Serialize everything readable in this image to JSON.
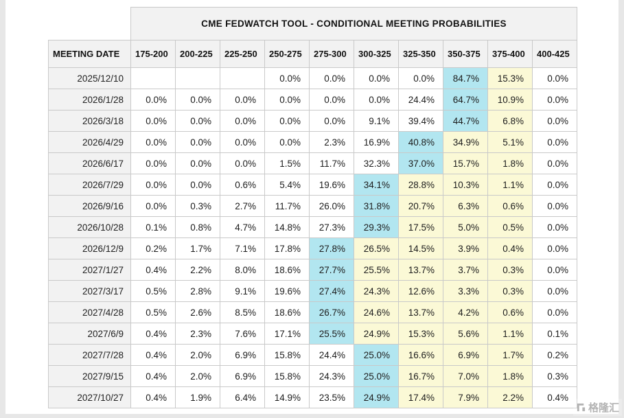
{
  "page": {
    "watermark_text": "格隆汇"
  },
  "chart_data": {
    "type": "table",
    "title": "CME FEDWATCH TOOL - CONDITIONAL MEETING PROBABILITIES",
    "row_header": "MEETING DATE",
    "columns": [
      "175-200",
      "200-225",
      "225-250",
      "250-275",
      "275-300",
      "300-325",
      "325-350",
      "350-375",
      "375-400",
      "400-425"
    ],
    "highlight_colors": {
      "max": "#b2e6f0",
      "band": "#fbf9d6"
    },
    "rows": [
      {
        "date": "2025/12/10",
        "values": [
          "",
          "",
          "",
          "0.0%",
          "0.0%",
          "0.0%",
          "0.0%",
          "84.7%",
          "15.3%",
          "0.0%"
        ],
        "max_col": 7,
        "band_cols": [
          8
        ]
      },
      {
        "date": "2026/1/28",
        "values": [
          "0.0%",
          "0.0%",
          "0.0%",
          "0.0%",
          "0.0%",
          "0.0%",
          "24.4%",
          "64.7%",
          "10.9%",
          "0.0%"
        ],
        "max_col": 7,
        "band_cols": [
          8
        ]
      },
      {
        "date": "2026/3/18",
        "values": [
          "0.0%",
          "0.0%",
          "0.0%",
          "0.0%",
          "0.0%",
          "9.1%",
          "39.4%",
          "44.7%",
          "6.8%",
          "0.0%"
        ],
        "max_col": 7,
        "band_cols": [
          8
        ]
      },
      {
        "date": "2026/4/29",
        "values": [
          "0.0%",
          "0.0%",
          "0.0%",
          "0.0%",
          "2.3%",
          "16.9%",
          "40.8%",
          "34.9%",
          "5.1%",
          "0.0%"
        ],
        "max_col": 6,
        "band_cols": [
          7,
          8
        ]
      },
      {
        "date": "2026/6/17",
        "values": [
          "0.0%",
          "0.0%",
          "0.0%",
          "1.5%",
          "11.7%",
          "32.3%",
          "37.0%",
          "15.7%",
          "1.8%",
          "0.0%"
        ],
        "max_col": 6,
        "band_cols": [
          7,
          8
        ]
      },
      {
        "date": "2026/7/29",
        "values": [
          "0.0%",
          "0.0%",
          "0.6%",
          "5.4%",
          "19.6%",
          "34.1%",
          "28.8%",
          "10.3%",
          "1.1%",
          "0.0%"
        ],
        "max_col": 5,
        "band_cols": [
          6,
          7,
          8
        ]
      },
      {
        "date": "2026/9/16",
        "values": [
          "0.0%",
          "0.3%",
          "2.7%",
          "11.7%",
          "26.0%",
          "31.8%",
          "20.7%",
          "6.3%",
          "0.6%",
          "0.0%"
        ],
        "max_col": 5,
        "band_cols": [
          6,
          7,
          8
        ]
      },
      {
        "date": "2026/10/28",
        "values": [
          "0.1%",
          "0.8%",
          "4.7%",
          "14.8%",
          "27.3%",
          "29.3%",
          "17.5%",
          "5.0%",
          "0.5%",
          "0.0%"
        ],
        "max_col": 5,
        "band_cols": [
          6,
          7,
          8
        ]
      },
      {
        "date": "2026/12/9",
        "values": [
          "0.2%",
          "1.7%",
          "7.1%",
          "17.8%",
          "27.8%",
          "26.5%",
          "14.5%",
          "3.9%",
          "0.4%",
          "0.0%"
        ],
        "max_col": 4,
        "band_cols": [
          5,
          6,
          7,
          8
        ]
      },
      {
        "date": "2027/1/27",
        "values": [
          "0.4%",
          "2.2%",
          "8.0%",
          "18.6%",
          "27.7%",
          "25.5%",
          "13.7%",
          "3.7%",
          "0.3%",
          "0.0%"
        ],
        "max_col": 4,
        "band_cols": [
          5,
          6,
          7,
          8
        ]
      },
      {
        "date": "2027/3/17",
        "values": [
          "0.5%",
          "2.8%",
          "9.1%",
          "19.6%",
          "27.4%",
          "24.3%",
          "12.6%",
          "3.3%",
          "0.3%",
          "0.0%"
        ],
        "max_col": 4,
        "band_cols": [
          5,
          6,
          7,
          8
        ]
      },
      {
        "date": "2027/4/28",
        "values": [
          "0.5%",
          "2.6%",
          "8.5%",
          "18.6%",
          "26.7%",
          "24.6%",
          "13.7%",
          "4.2%",
          "0.6%",
          "0.0%"
        ],
        "max_col": 4,
        "band_cols": [
          5,
          6,
          7,
          8
        ]
      },
      {
        "date": "2027/6/9",
        "values": [
          "0.4%",
          "2.3%",
          "7.6%",
          "17.1%",
          "25.5%",
          "24.9%",
          "15.3%",
          "5.6%",
          "1.1%",
          "0.1%"
        ],
        "max_col": 4,
        "band_cols": [
          5,
          6,
          7,
          8
        ]
      },
      {
        "date": "2027/7/28",
        "values": [
          "0.4%",
          "2.0%",
          "6.9%",
          "15.8%",
          "24.4%",
          "25.0%",
          "16.6%",
          "6.9%",
          "1.7%",
          "0.2%"
        ],
        "max_col": 5,
        "band_cols": [
          6,
          7,
          8
        ]
      },
      {
        "date": "2027/9/15",
        "values": [
          "0.4%",
          "2.0%",
          "6.9%",
          "15.8%",
          "24.3%",
          "25.0%",
          "16.7%",
          "7.0%",
          "1.8%",
          "0.3%"
        ],
        "max_col": 5,
        "band_cols": [
          6,
          7,
          8
        ]
      },
      {
        "date": "2027/10/27",
        "values": [
          "0.4%",
          "1.9%",
          "6.4%",
          "14.9%",
          "23.5%",
          "24.9%",
          "17.4%",
          "7.9%",
          "2.2%",
          "0.4%"
        ],
        "max_col": 5,
        "band_cols": [
          6,
          7,
          8
        ]
      }
    ]
  }
}
